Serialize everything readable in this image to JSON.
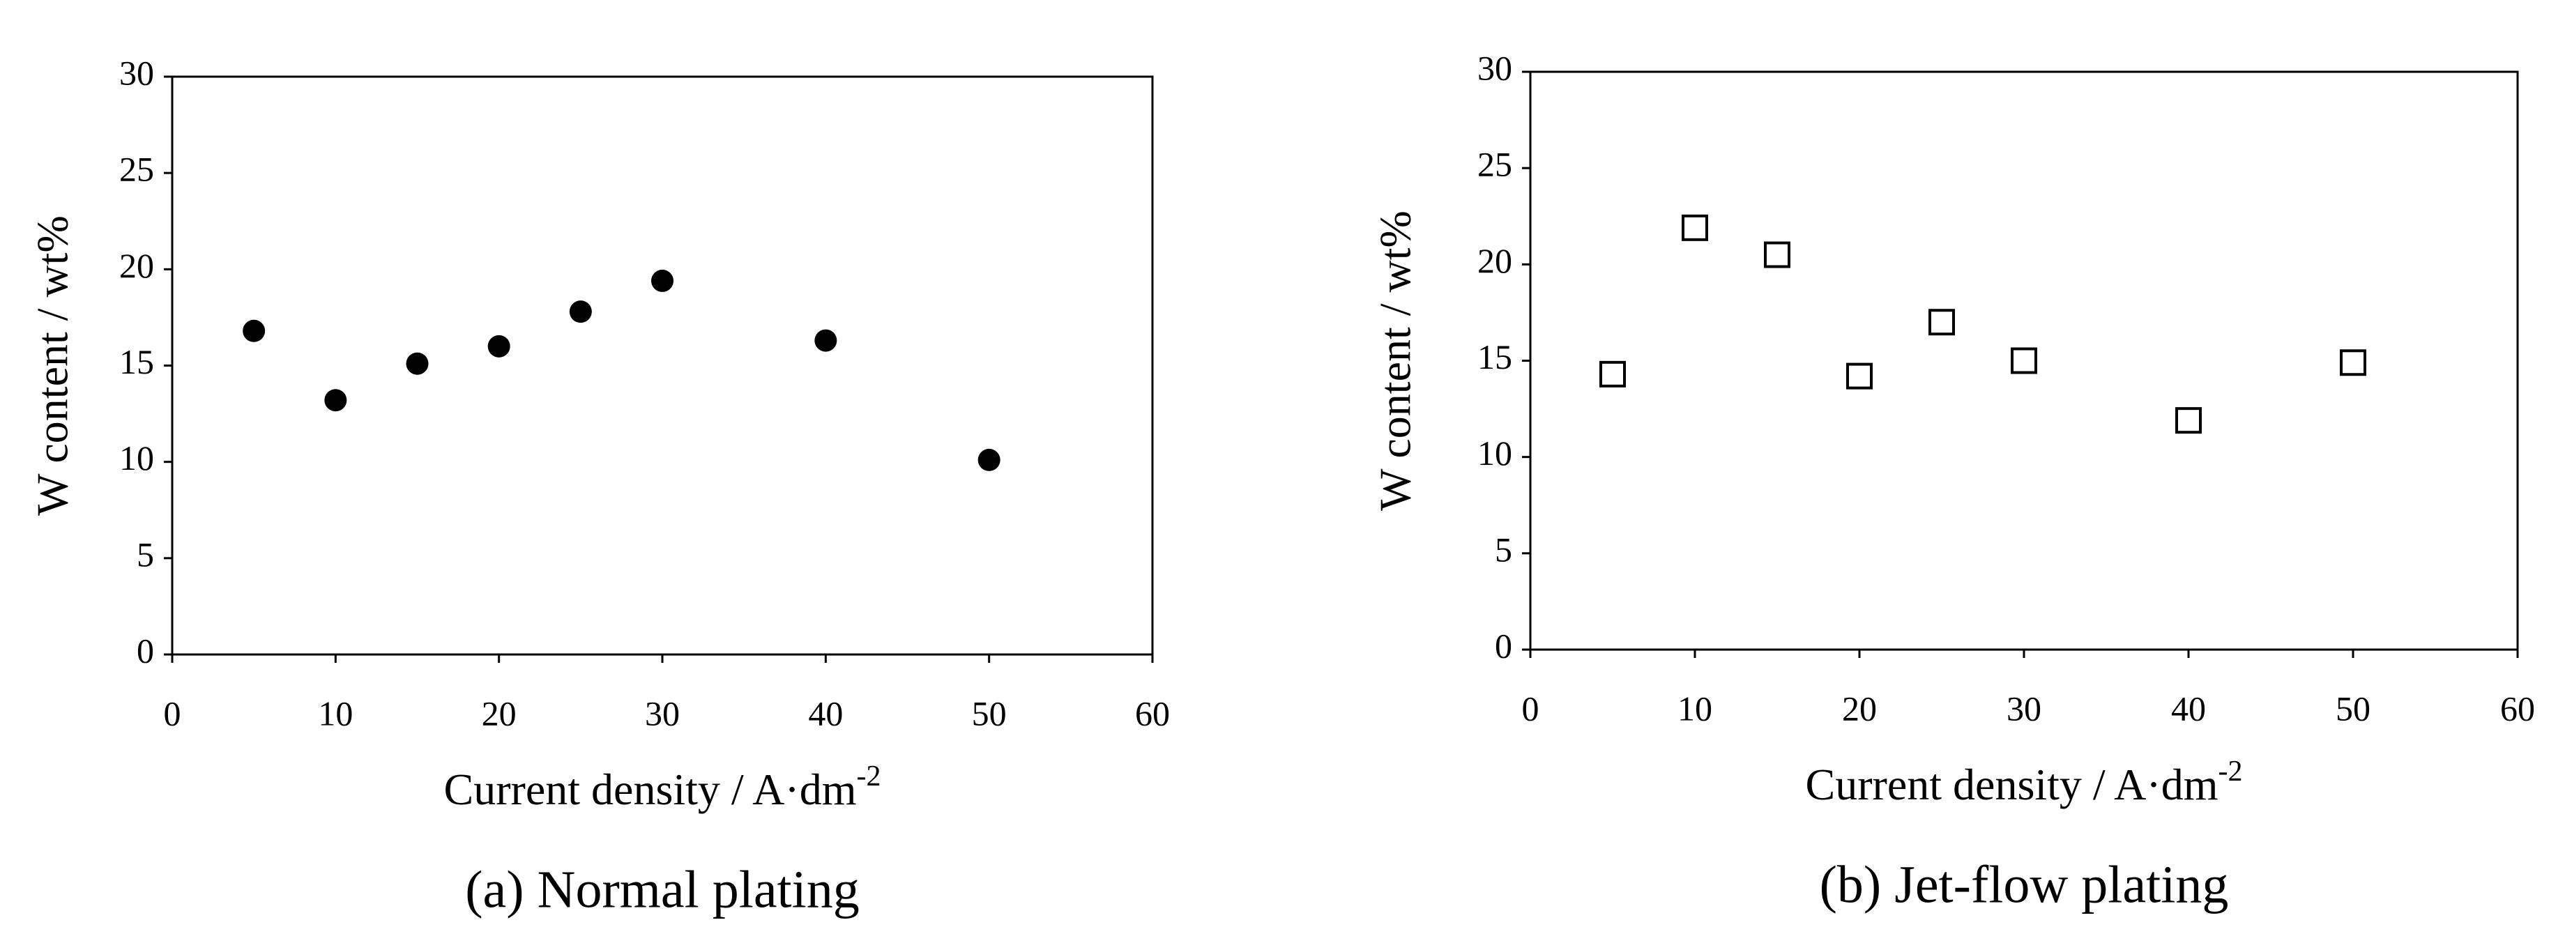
{
  "chart_data": [
    {
      "type": "scatter",
      "marker": "circle",
      "color": "#000000",
      "xlabel": "Current density / A·dm",
      "xlabel_superscript": "-2",
      "ylabel": "W content / wt%",
      "caption": "(a) Normal plating",
      "x": [
        5,
        10,
        15,
        20,
        25,
        30,
        40,
        50
      ],
      "values": [
        16.8,
        13.2,
        15.1,
        16.0,
        17.8,
        19.4,
        16.3,
        10.1
      ],
      "xlim": [
        0,
        60
      ],
      "xticks": [
        0,
        10,
        20,
        30,
        40,
        50,
        60
      ],
      "ylim": [
        0,
        30
      ],
      "yticks": [
        0,
        5,
        10,
        15,
        20,
        25,
        30
      ],
      "grid": false
    },
    {
      "type": "scatter",
      "marker": "square",
      "color": "#000000",
      "xlabel": "Current density / A·dm",
      "xlabel_superscript": "-2",
      "ylabel": "W content / wt%",
      "caption": "(b) Jet-flow plating",
      "x": [
        5,
        10,
        15,
        20,
        25,
        30,
        40,
        50
      ],
      "values": [
        14.3,
        21.9,
        20.5,
        14.2,
        17.0,
        15.0,
        11.9,
        14.9
      ],
      "xlim": [
        0,
        60
      ],
      "xticks": [
        0,
        10,
        20,
        30,
        40,
        50,
        60
      ],
      "ylim": [
        0,
        30
      ],
      "yticks": [
        0,
        5,
        10,
        15,
        20,
        25,
        30
      ],
      "grid": false
    }
  ]
}
